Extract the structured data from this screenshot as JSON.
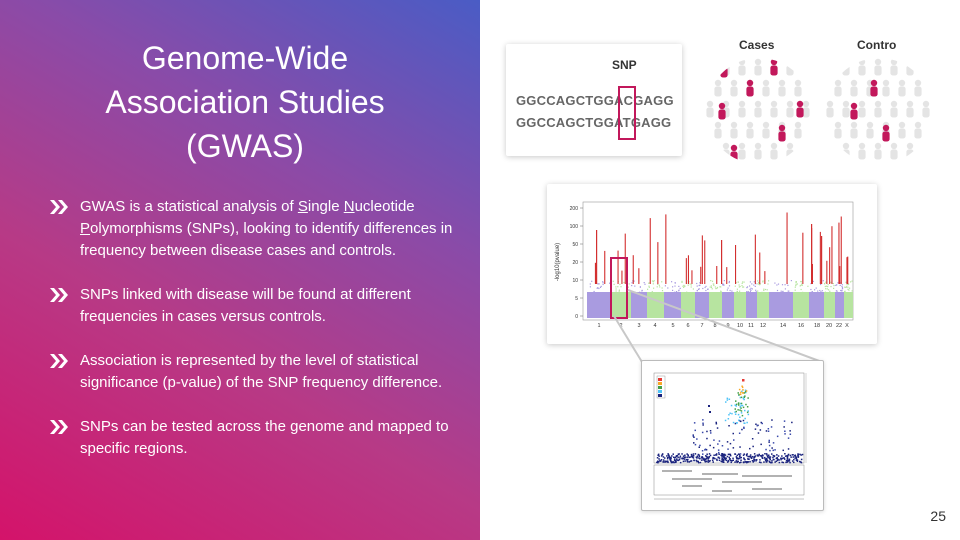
{
  "slide": {
    "title_lines": [
      "Genome-Wide",
      "Association Studies",
      "(GWAS)"
    ],
    "page_number": "25"
  },
  "bullets": [
    {
      "parts": [
        "GWAS is a statistical analysis of ",
        "S",
        "ingle ",
        "N",
        "ucleotide ",
        "P",
        "olymorphisms (SNPs), looking to identify differences in frequency between disease cases and controls."
      ]
    },
    {
      "text": "SNPs linked with disease will be found at different frequencies in cases versus controls."
    },
    {
      "text": "Association is represented by the level of statistical significance (p-value) of the SNP frequency difference."
    },
    {
      "text": "SNPs can be tested across the genome and mapped to specific regions."
    }
  ],
  "snp_panel": {
    "label": "SNP",
    "sequence_1": "GGCCAGCTGGACGAGG",
    "sequence_2": "GGCCAGCTGGATGAGG"
  },
  "groups": {
    "cases_label": "Cases",
    "controls_label": "Contro"
  },
  "manhattan_plot": {
    "y_axis_label": "-log10(pvalue)",
    "y_ticks": [
      "0",
      "5",
      "10",
      "20",
      "50",
      "100",
      "200"
    ],
    "x_ticks": [
      "1",
      "2",
      "3",
      "4",
      "5",
      "6",
      "7",
      "8",
      "9",
      "10",
      "11",
      "12",
      "14",
      "16",
      "18",
      "20",
      "22",
      "X"
    ]
  },
  "colors": {
    "gradient_start": "#d4136a",
    "gradient_end": "#4a5cc5",
    "highlight": "#c2185b",
    "significant": "#d32f2f",
    "purple_snp": "#a99be0",
    "green_snp": "#b7e4a0",
    "person_gray": "#e4e4e4"
  }
}
